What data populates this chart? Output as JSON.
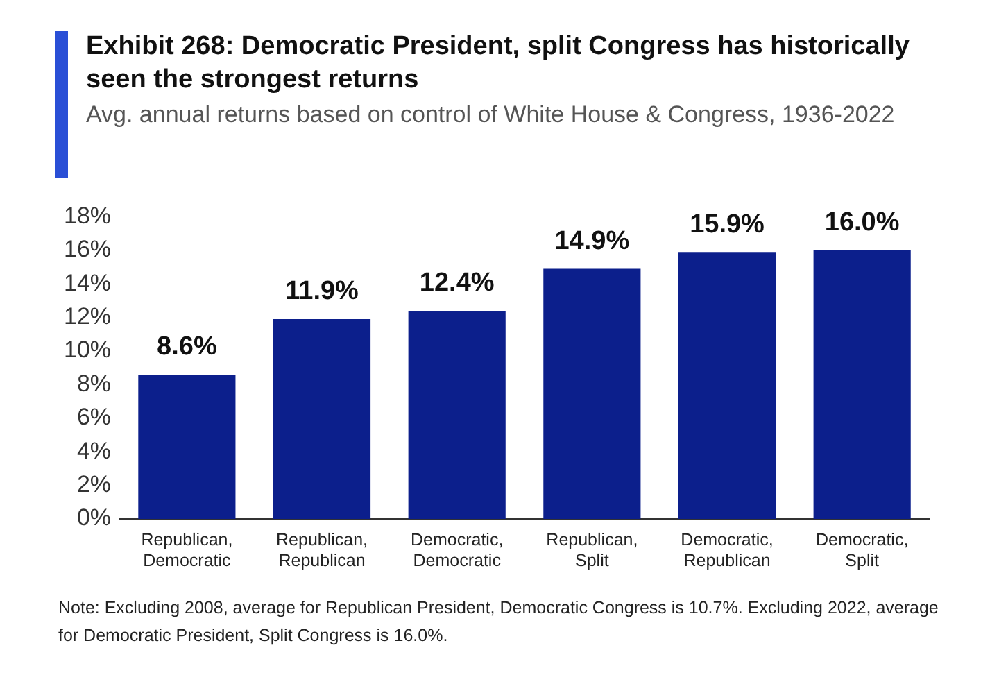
{
  "chart_data": {
    "type": "bar",
    "title": "Exhibit 268: Democratic President, split Congress has historically seen the strongest returns",
    "subtitle": "Avg. annual returns based on control of White House & Congress, 1936-2022",
    "categories": [
      "Republican, Democratic",
      "Republican, Republican",
      "Democratic, Democratic",
      "Republican, Split",
      "Democratic, Republican",
      "Democratic, Split"
    ],
    "values": [
      8.6,
      11.9,
      12.4,
      14.9,
      15.9,
      16.0
    ],
    "value_labels": [
      "8.6%",
      "11.9%",
      "12.4%",
      "14.9%",
      "15.9%",
      "16.0%"
    ],
    "color": "#0c1f8c",
    "ylim": [
      0,
      18
    ],
    "yticks": [
      {
        "value": 0,
        "label": "0%"
      },
      {
        "value": 2,
        "label": "2%"
      },
      {
        "value": 4,
        "label": "4%"
      },
      {
        "value": 6,
        "label": "6%"
      },
      {
        "value": 8,
        "label": "8%"
      },
      {
        "value": 10,
        "label": "10%"
      },
      {
        "value": 12,
        "label": "12%"
      },
      {
        "value": 14,
        "label": "14%"
      },
      {
        "value": 16,
        "label": "16%"
      },
      {
        "value": 18,
        "label": "18%"
      }
    ],
    "grid": false,
    "legend": false,
    "annotations": [
      "Note: Excluding 2008, average for Republican President, Democratic Congress is 10.7%. Excluding 2022, average for Democratic President, Split Congress is 16.0%."
    ]
  }
}
